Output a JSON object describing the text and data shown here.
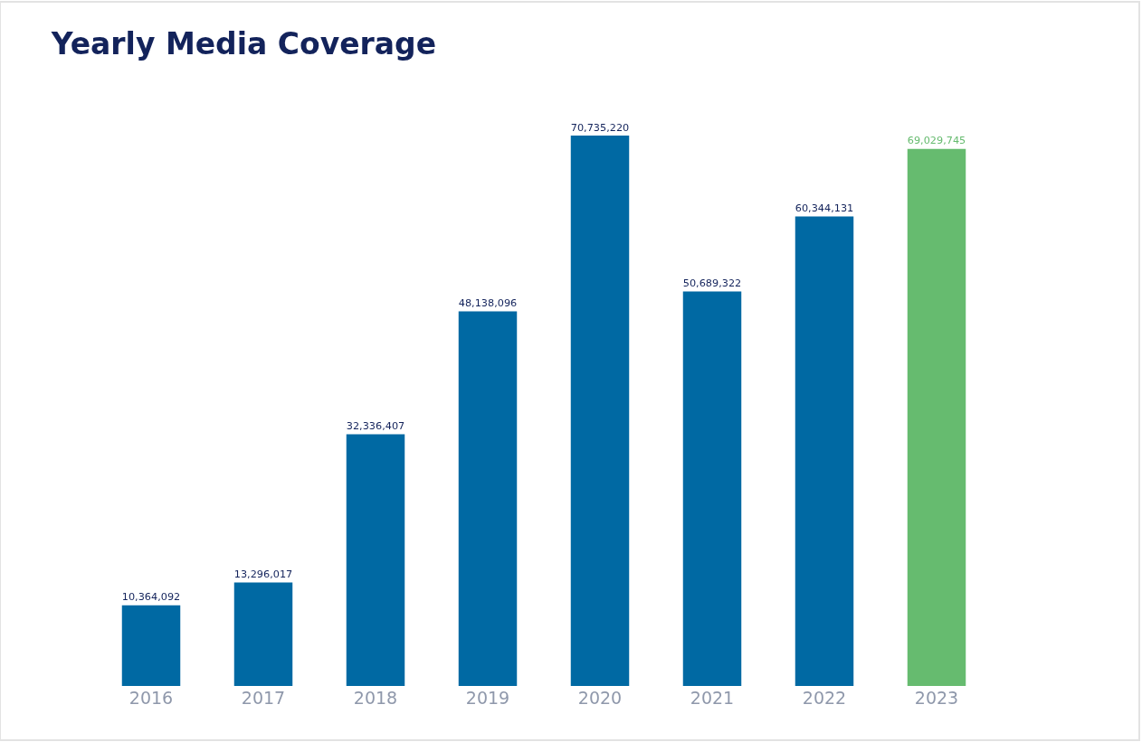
{
  "chart_data": {
    "type": "bar",
    "title": "Yearly Media Coverage",
    "categories": [
      "2016",
      "2017",
      "2018",
      "2019",
      "2020",
      "2021",
      "2022",
      "2023"
    ],
    "values": [
      10364092,
      13296017,
      32336407,
      48138096,
      70735220,
      50689322,
      60344131,
      69029745
    ],
    "value_labels": [
      "10,364,092",
      "13,296,017",
      "32,336,407",
      "48,138,096",
      "70,735,220",
      "50,689,322",
      "60,344,131",
      "69,029,745"
    ],
    "colors": [
      "#0069a3",
      "#0069a3",
      "#0069a3",
      "#0069a3",
      "#0069a3",
      "#0069a3",
      "#0069a3",
      "#66bb6f"
    ]
  }
}
